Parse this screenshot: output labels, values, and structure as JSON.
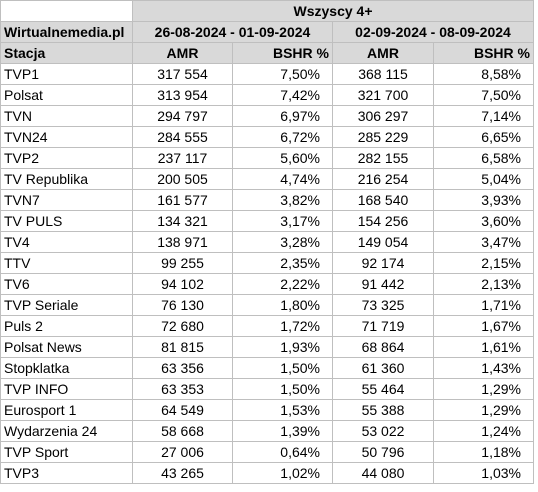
{
  "table": {
    "group_header": "Wszyscy 4+",
    "source_label": "Wirtualnemedia.pl",
    "period1": "26-08-2024 - 01-09-2024",
    "period2": "02-09-2024 - 08-09-2024",
    "col_station": "Stacja",
    "col_amr": "AMR",
    "col_bshr": "BSHR %",
    "rows": [
      {
        "station": "TVP1",
        "amr1": "317 554",
        "bshr1": "7,50%",
        "amr2": "368 115",
        "bshr2": "8,58%"
      },
      {
        "station": "Polsat",
        "amr1": "313 954",
        "bshr1": "7,42%",
        "amr2": "321 700",
        "bshr2": "7,50%"
      },
      {
        "station": "TVN",
        "amr1": "294 797",
        "bshr1": "6,97%",
        "amr2": "306 297",
        "bshr2": "7,14%"
      },
      {
        "station": "TVN24",
        "amr1": "284 555",
        "bshr1": "6,72%",
        "amr2": "285 229",
        "bshr2": "6,65%"
      },
      {
        "station": "TVP2",
        "amr1": "237 117",
        "bshr1": "5,60%",
        "amr2": "282 155",
        "bshr2": "6,58%"
      },
      {
        "station": "TV Republika",
        "amr1": "200 505",
        "bshr1": "4,74%",
        "amr2": "216 254",
        "bshr2": "5,04%"
      },
      {
        "station": "TVN7",
        "amr1": "161 577",
        "bshr1": "3,82%",
        "amr2": "168 540",
        "bshr2": "3,93%"
      },
      {
        "station": "TV PULS",
        "amr1": "134 321",
        "bshr1": "3,17%",
        "amr2": "154 256",
        "bshr2": "3,60%"
      },
      {
        "station": "TV4",
        "amr1": "138 971",
        "bshr1": "3,28%",
        "amr2": "149 054",
        "bshr2": "3,47%"
      },
      {
        "station": "TTV",
        "amr1": "99 255",
        "bshr1": "2,35%",
        "amr2": "92 174",
        "bshr2": "2,15%"
      },
      {
        "station": "TV6",
        "amr1": "94 102",
        "bshr1": "2,22%",
        "amr2": "91 442",
        "bshr2": "2,13%"
      },
      {
        "station": "TVP Seriale",
        "amr1": "76 130",
        "bshr1": "1,80%",
        "amr2": "73 325",
        "bshr2": "1,71%"
      },
      {
        "station": "Puls 2",
        "amr1": "72 680",
        "bshr1": "1,72%",
        "amr2": "71 719",
        "bshr2": "1,67%"
      },
      {
        "station": "Polsat News",
        "amr1": "81 815",
        "bshr1": "1,93%",
        "amr2": "68 864",
        "bshr2": "1,61%"
      },
      {
        "station": "Stopklatka",
        "amr1": "63 356",
        "bshr1": "1,50%",
        "amr2": "61 360",
        "bshr2": "1,43%"
      },
      {
        "station": "TVP INFO",
        "amr1": "63 353",
        "bshr1": "1,50%",
        "amr2": "55 464",
        "bshr2": "1,29%"
      },
      {
        "station": "Eurosport 1",
        "amr1": "64 549",
        "bshr1": "1,53%",
        "amr2": "55 388",
        "bshr2": "1,29%"
      },
      {
        "station": "Wydarzenia 24",
        "amr1": "58 668",
        "bshr1": "1,39%",
        "amr2": "53 022",
        "bshr2": "1,24%"
      },
      {
        "station": "TVP Sport",
        "amr1": "27 006",
        "bshr1": "0,64%",
        "amr2": "50 796",
        "bshr2": "1,18%"
      },
      {
        "station": "TVP3",
        "amr1": "43 265",
        "bshr1": "1,02%",
        "amr2": "44 080",
        "bshr2": "1,03%"
      }
    ]
  }
}
